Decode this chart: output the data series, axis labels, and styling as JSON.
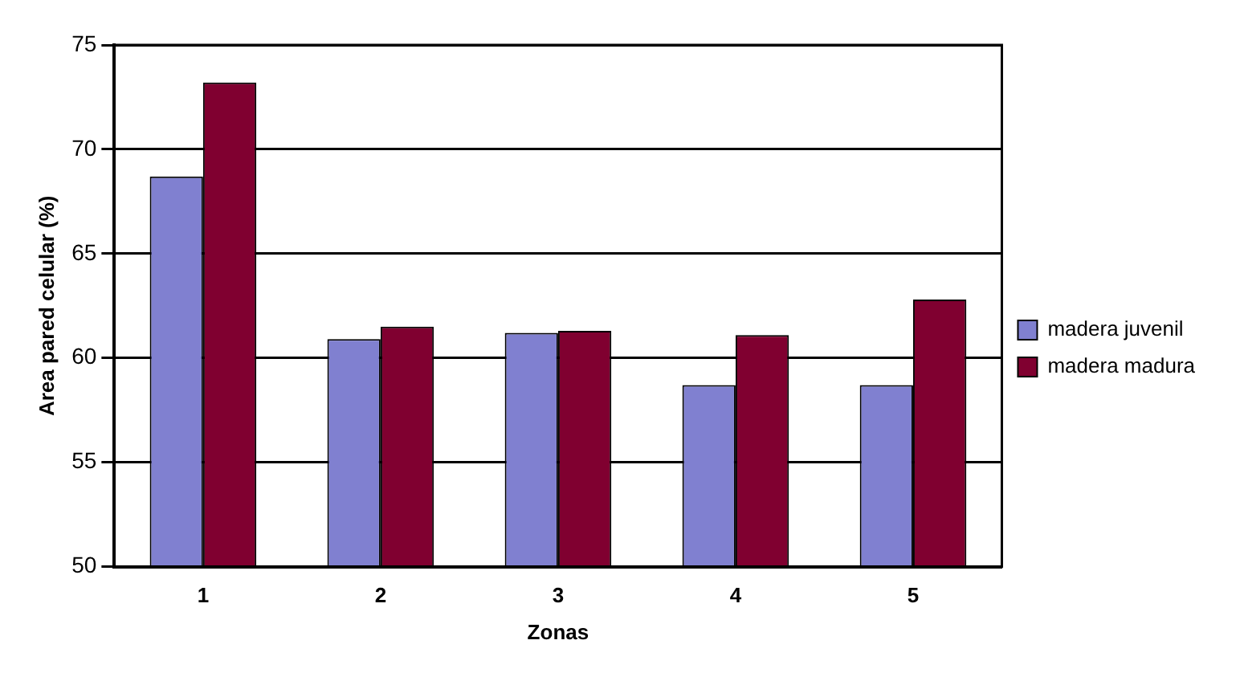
{
  "chart_data": {
    "type": "bar",
    "xlabel": "Zonas",
    "ylabel": "Area pared celular (%)",
    "categories": [
      "1",
      "2",
      "3",
      "4",
      "5"
    ],
    "series": [
      {
        "name": "madera juvenil",
        "color": "#8080d0",
        "values": [
          68.7,
          60.9,
          61.2,
          58.7,
          58.7
        ]
      },
      {
        "name": "madera madura",
        "color": "#800030",
        "values": [
          73.2,
          61.5,
          61.3,
          61.1,
          62.8
        ]
      }
    ],
    "ylim": [
      50,
      75
    ],
    "yticks": [
      50,
      55,
      60,
      65,
      70,
      75
    ],
    "grid": "y",
    "legend": "right"
  }
}
